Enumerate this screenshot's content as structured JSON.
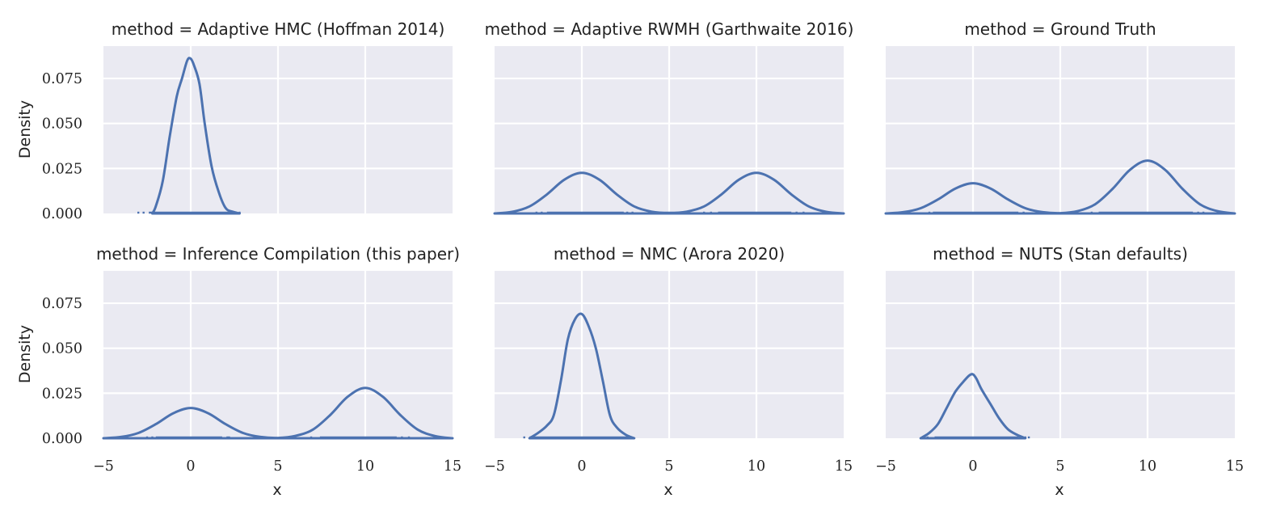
{
  "chart_data": {
    "type": "density",
    "layout": {
      "rows": 2,
      "cols": 3,
      "sharex": true,
      "sharey": true
    },
    "xlim": [
      -5,
      15
    ],
    "ylim": [
      0,
      0.093
    ],
    "xticks": [
      -5,
      0,
      5,
      10,
      15
    ],
    "xtick_labels": [
      "−5",
      "0",
      "5",
      "10",
      "15"
    ],
    "yticks": [
      0,
      0.025,
      0.05,
      0.075
    ],
    "ytick_labels": [
      "0.000",
      "0.025",
      "0.050",
      "0.075"
    ],
    "xlabel": "x",
    "ylabel": "Density",
    "color": "#4c72b0",
    "grid": true,
    "panels": [
      {
        "title": "method = Adaptive HMC (Hoffman 2014)",
        "curve": {
          "x": [
            -2.2,
            -2.0,
            -1.6,
            -1.2,
            -0.8,
            -0.5,
            -0.2,
            0.0,
            0.2,
            0.5,
            0.8,
            1.2,
            1.6,
            2.0,
            2.4,
            2.8
          ],
          "y": [
            0.0,
            0.004,
            0.018,
            0.043,
            0.065,
            0.075,
            0.085,
            0.086,
            0.082,
            0.072,
            0.05,
            0.026,
            0.012,
            0.003,
            0.001,
            0.0
          ]
        },
        "rug": {
          "dense": [
            [
              -2.4,
              2.4
            ]
          ],
          "sparse": [
            -3.0,
            -2.7,
            2.8,
            2.6
          ]
        }
      },
      {
        "title": "method = Adaptive RWMH (Garthwaite 2016)",
        "curve": {
          "x": [
            -5.0,
            -4.0,
            -3.0,
            -2.0,
            -1.0,
            0.0,
            1.0,
            2.0,
            3.0,
            4.0,
            5.0,
            6.0,
            7.0,
            8.0,
            9.0,
            10.0,
            11.0,
            12.0,
            13.0,
            14.0,
            15.0
          ],
          "y": [
            0.0,
            0.0009,
            0.0039,
            0.0106,
            0.0188,
            0.0226,
            0.0188,
            0.0106,
            0.0039,
            0.001,
            0.0003,
            0.001,
            0.0039,
            0.0106,
            0.0188,
            0.0226,
            0.0188,
            0.0106,
            0.0039,
            0.0009,
            0.0
          ]
        },
        "rug": {
          "dense": [
            [
              -2.0,
              2.4
            ],
            [
              7.8,
              12.0
            ]
          ],
          "sparse": [
            -2.6,
            -2.3,
            2.6,
            2.9,
            7.0,
            7.4,
            12.3,
            12.7
          ]
        }
      },
      {
        "title": "method = Ground Truth",
        "curve": {
          "x": [
            -5.0,
            -4.0,
            -3.0,
            -2.0,
            -1.0,
            0.0,
            1.0,
            2.0,
            3.0,
            4.0,
            5.0,
            6.0,
            7.0,
            8.0,
            9.0,
            10.0,
            11.0,
            12.0,
            13.0,
            14.0,
            15.0
          ],
          "y": [
            0.0,
            0.0007,
            0.0029,
            0.0078,
            0.0139,
            0.0168,
            0.0139,
            0.0078,
            0.0029,
            0.0007,
            0.0002,
            0.0013,
            0.0051,
            0.0137,
            0.0243,
            0.0294,
            0.0243,
            0.0137,
            0.0051,
            0.0013,
            0.0
          ]
        },
        "rug": {
          "dense": [
            [
              -2.3,
              2.6
            ],
            [
              7.2,
              12.6
            ]
          ],
          "sparse": [
            -2.5,
            2.9,
            6.8,
            12.9,
            13.2
          ]
        }
      },
      {
        "title": "method = Inference Compilation (this paper)",
        "curve": {
          "x": [
            -5.0,
            -4.0,
            -3.0,
            -2.0,
            -1.0,
            0.0,
            1.0,
            2.0,
            3.0,
            4.0,
            5.0,
            6.0,
            7.0,
            8.0,
            9.0,
            10.0,
            11.0,
            12.0,
            13.0,
            14.0,
            15.0
          ],
          "y": [
            0.0,
            0.0007,
            0.0029,
            0.0078,
            0.0139,
            0.0168,
            0.0139,
            0.0078,
            0.0029,
            0.0007,
            0.0002,
            0.0013,
            0.0048,
            0.013,
            0.0231,
            0.028,
            0.0231,
            0.013,
            0.0048,
            0.0012,
            0.0
          ]
        },
        "rug": {
          "dense": [
            [
              -2.0,
              1.8
            ],
            [
              7.4,
              11.8
            ]
          ],
          "sparse": [
            -2.5,
            -2.2,
            2.1,
            2.2,
            6.9,
            12.1,
            12.5
          ]
        }
      },
      {
        "title": "method = NMC (Arora 2020)",
        "curve": {
          "x": [
            -3.0,
            -2.5,
            -2.0,
            -1.6,
            -1.2,
            -0.8,
            -0.4,
            0.0,
            0.4,
            0.8,
            1.2,
            1.6,
            2.0,
            2.5,
            3.0
          ],
          "y": [
            0.0,
            0.003,
            0.007,
            0.013,
            0.032,
            0.055,
            0.066,
            0.069,
            0.062,
            0.05,
            0.032,
            0.013,
            0.006,
            0.002,
            0.0
          ]
        },
        "rug": {
          "dense": [
            [
              -3.0,
              2.8
            ]
          ],
          "sparse": [
            -3.3
          ]
        }
      },
      {
        "title": "method = NUTS (Stan defaults)",
        "curve": {
          "x": [
            -3.0,
            -2.5,
            -2.0,
            -1.5,
            -1.0,
            -0.5,
            -0.2,
            0.0,
            0.2,
            0.5,
            1.0,
            1.5,
            2.0,
            2.5,
            3.0
          ],
          "y": [
            0.0,
            0.003,
            0.008,
            0.017,
            0.026,
            0.032,
            0.035,
            0.0355,
            0.033,
            0.027,
            0.019,
            0.011,
            0.005,
            0.002,
            0.0
          ]
        },
        "rug": {
          "dense": [
            [
              -2.2,
              2.6
            ]
          ],
          "sparse": [
            -2.6,
            3.0,
            3.2
          ]
        }
      }
    ]
  }
}
